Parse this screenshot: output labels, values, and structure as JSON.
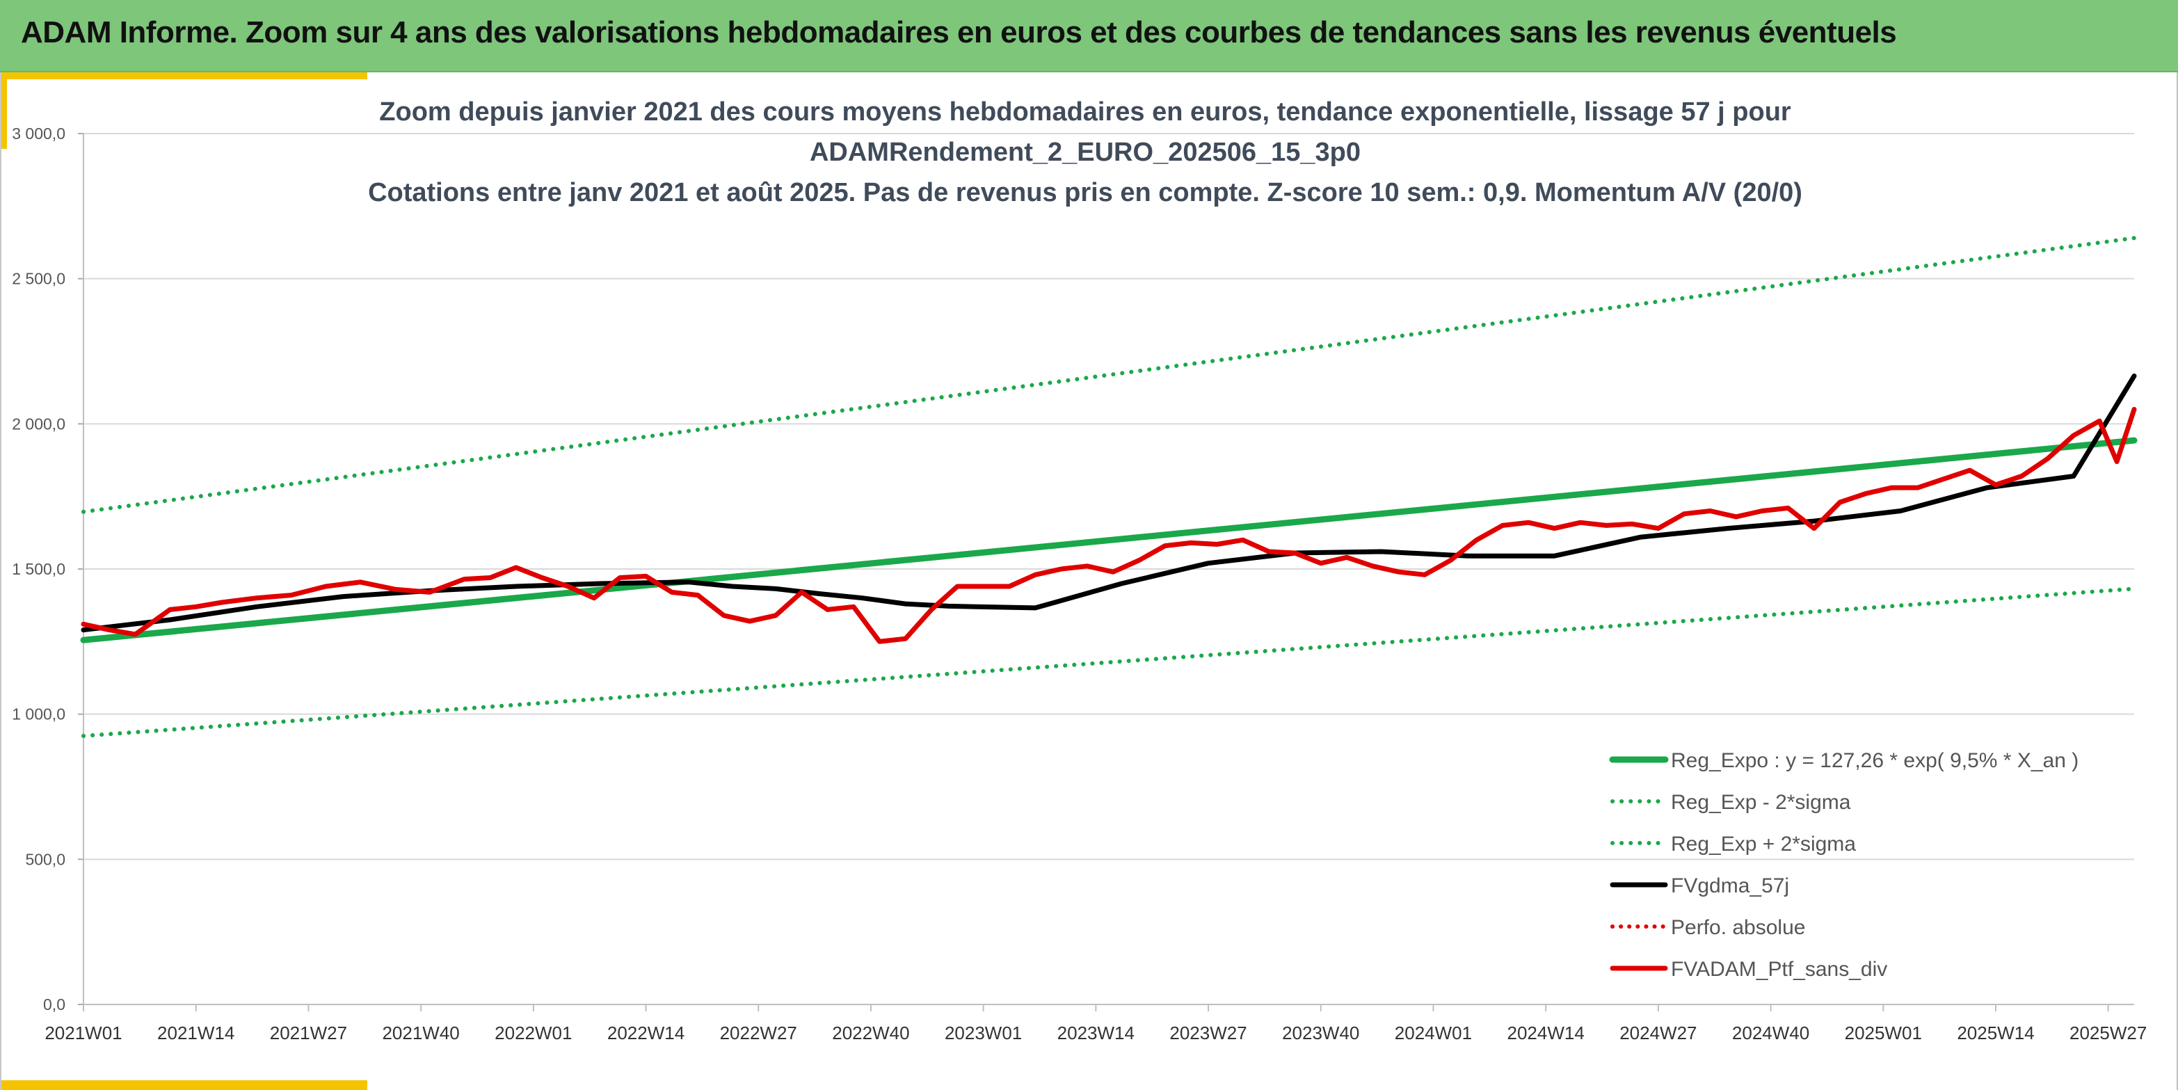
{
  "header": {
    "title": "ADAM Informe. Zoom sur 4 ans des valorisations hebdomadaires en euros et des courbes de tendances sans les revenus éventuels"
  },
  "colors": {
    "header_bg": "#7dc67a",
    "accent": "#f5c400",
    "trend_green": "#1aa84a",
    "smooth_black": "#000000",
    "portfolio_red": "#e00000"
  },
  "chart_data": {
    "type": "line",
    "title_lines": [
      "Zoom depuis janvier 2021 des cours moyens hebdomadaires en euros, tendance exponentielle, lissage 57 j pour",
      "ADAMRendement_2_EURO_202506_15_3p0",
      "Cotations entre janv 2021 et août 2025. Pas de revenus pris en compte. Z-score 10 sem.: 0,9. Momentum A/V (20/0)"
    ],
    "x_tick_labels": [
      "2021W01",
      "2021W14",
      "2021W27",
      "2021W40",
      "2022W01",
      "2022W14",
      "2022W27",
      "2022W40",
      "2023W01",
      "2023W14",
      "2023W27",
      "2023W40",
      "2024W01",
      "2024W14",
      "2024W27",
      "2024W40",
      "2025W01",
      "2025W14",
      "2025W27"
    ],
    "y_tick_labels": [
      "0,0",
      "500,0",
      "1 000,0",
      "1 500,0",
      "2 000,0",
      "2 500,0",
      "3 000,0"
    ],
    "ylim": [
      0,
      3000
    ],
    "grid": "horizontal",
    "legend_position": "bottom-right",
    "series": [
      {
        "name": "Reg_Expo : y = 127,26 * exp( 9,5% *  X_an )",
        "style": "solid-green",
        "x": [
          0,
          237
        ],
        "y": [
          1255,
          1943
        ]
      },
      {
        "name": "Reg_Exp - 2*sigma",
        "style": "dotted-green",
        "x": [
          0,
          237
        ],
        "y": [
          925,
          1432
        ]
      },
      {
        "name": "Reg_Exp + 2*sigma",
        "style": "dotted-green",
        "x": [
          0,
          237
        ],
        "y": [
          1697,
          2640
        ]
      },
      {
        "name": "FVgdma_57j",
        "style": "solid-black",
        "x": [
          0,
          10,
          20,
          30,
          40,
          50,
          60,
          70,
          75,
          80,
          85,
          90,
          95,
          100,
          110,
          120,
          130,
          140,
          150,
          160,
          170,
          180,
          190,
          200,
          210,
          220,
          230,
          237
        ],
        "y": [
          1290,
          1325,
          1370,
          1405,
          1425,
          1440,
          1450,
          1455,
          1440,
          1432,
          1415,
          1400,
          1380,
          1372,
          1366,
          1450,
          1520,
          1555,
          1560,
          1545,
          1545,
          1610,
          1640,
          1665,
          1700,
          1780,
          1820,
          2165
        ]
      },
      {
        "name": "Perfo. absolue",
        "style": "dotted-red",
        "x": [],
        "y": []
      },
      {
        "name": "FVADAM_Ptf_sans_div",
        "style": "solid-red",
        "x": [
          0,
          3,
          6,
          10,
          13,
          16,
          20,
          24,
          28,
          32,
          36,
          40,
          44,
          47,
          50,
          53,
          56,
          59,
          62,
          65,
          68,
          71,
          74,
          77,
          80,
          83,
          86,
          89,
          92,
          95,
          98,
          101,
          104,
          107,
          110,
          113,
          116,
          119,
          122,
          125,
          128,
          131,
          134,
          137,
          140,
          143,
          146,
          149,
          152,
          155,
          158,
          161,
          164,
          167,
          170,
          173,
          176,
          179,
          182,
          185,
          188,
          191,
          194,
          197,
          200,
          203,
          206,
          209,
          212,
          215,
          218,
          221,
          224,
          227,
          230,
          233,
          235,
          237
        ],
        "y": [
          1310,
          1290,
          1275,
          1360,
          1370,
          1385,
          1400,
          1410,
          1440,
          1455,
          1430,
          1420,
          1465,
          1470,
          1505,
          1470,
          1440,
          1400,
          1470,
          1475,
          1420,
          1410,
          1340,
          1320,
          1340,
          1420,
          1360,
          1370,
          1250,
          1260,
          1360,
          1440,
          1440,
          1440,
          1480,
          1500,
          1510,
          1490,
          1530,
          1580,
          1590,
          1585,
          1600,
          1560,
          1555,
          1520,
          1540,
          1510,
          1490,
          1480,
          1530,
          1600,
          1650,
          1660,
          1640,
          1660,
          1650,
          1655,
          1640,
          1690,
          1700,
          1680,
          1700,
          1710,
          1640,
          1730,
          1760,
          1780,
          1780,
          1810,
          1840,
          1790,
          1820,
          1880,
          1960,
          2010,
          1870,
          2050
        ]
      }
    ]
  }
}
